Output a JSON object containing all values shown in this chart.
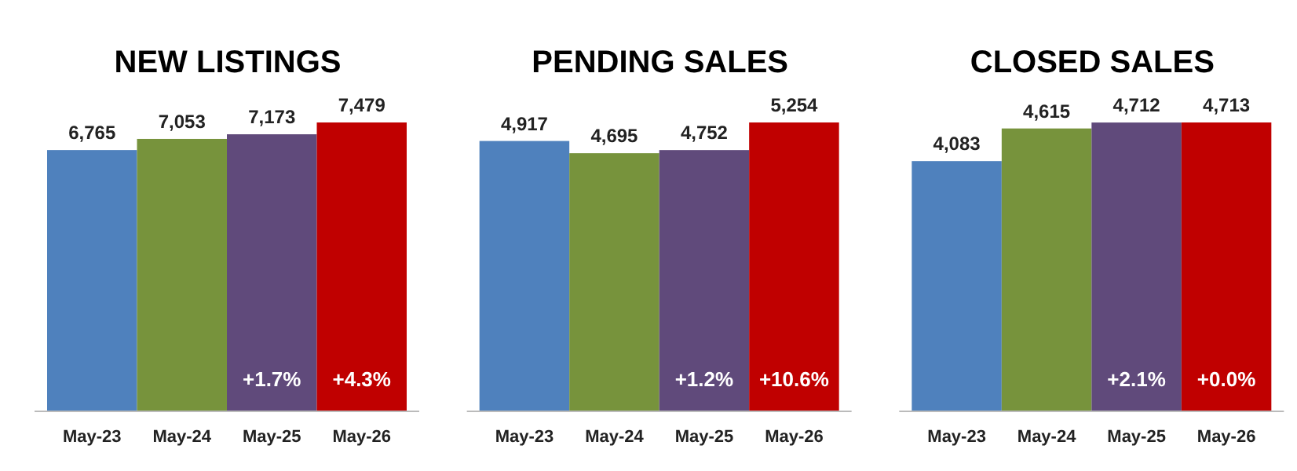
{
  "chart_data": [
    {
      "type": "bar",
      "title": "NEW LISTINGS",
      "categories": [
        "May-23",
        "May-24",
        "May-25",
        "May-26"
      ],
      "values": [
        6765,
        7053,
        7173,
        7479
      ],
      "value_labels": [
        "6,765",
        "7,053",
        "7,173",
        "7,479"
      ],
      "colors": [
        "#4f81bd",
        "#77933c",
        "#604a7b",
        "#c00000"
      ],
      "annotations": [
        "+1.7%",
        "+4.3%"
      ]
    },
    {
      "type": "bar",
      "title": "PENDING SALES",
      "categories": [
        "May-23",
        "May-24",
        "May-25",
        "May-26"
      ],
      "values": [
        4917,
        4695,
        4752,
        5254
      ],
      "value_labels": [
        "4,917",
        "4,695",
        "4,752",
        "5,254"
      ],
      "colors": [
        "#4f81bd",
        "#77933c",
        "#604a7b",
        "#c00000"
      ],
      "annotations": [
        "+1.2%",
        "+10.6%"
      ]
    },
    {
      "type": "bar",
      "title": "CLOSED SALES",
      "categories": [
        "May-23",
        "May-24",
        "May-25",
        "May-26"
      ],
      "values": [
        4083,
        4615,
        4712,
        4713
      ],
      "value_labels": [
        "4,083",
        "4,615",
        "4,712",
        "4,713"
      ],
      "colors": [
        "#4f81bd",
        "#77933c",
        "#604a7b",
        "#c00000"
      ],
      "annotations": [
        "+2.1%",
        "+0.0%"
      ]
    }
  ]
}
